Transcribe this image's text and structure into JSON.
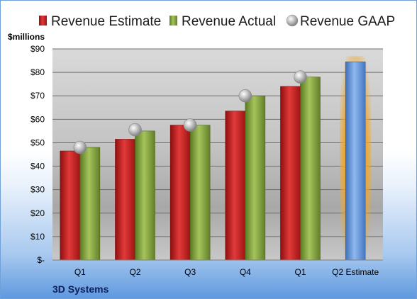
{
  "chart_data": {
    "type": "bar",
    "categories": [
      "Q1",
      "Q2",
      "Q3",
      "Q4",
      "Q1",
      "Q2 Estimate"
    ],
    "series": [
      {
        "name": "Revenue Estimate",
        "values": [
          46.5,
          51.5,
          57.5,
          63.5,
          74.0,
          null
        ],
        "color": "#d22626"
      },
      {
        "name": "Revenue Actual",
        "values": [
          48.0,
          55.0,
          57.5,
          70.0,
          78.0,
          null
        ],
        "color": "#88a844"
      },
      {
        "name": "Revenue GAAP",
        "values": [
          48.0,
          55.5,
          57.5,
          70.0,
          78.0,
          null
        ],
        "color": "#b8b8b8",
        "marker": "sphere"
      },
      {
        "name": "",
        "values": [
          null,
          null,
          null,
          null,
          null,
          84.5
        ],
        "color": "#5d95dc",
        "highlight": "#f5a623"
      }
    ],
    "y_unit": "$millions",
    "y_ticks": [
      "$-",
      "$10",
      "$20",
      "$30",
      "$40",
      "$50",
      "$60",
      "$70",
      "$80",
      "$90"
    ],
    "ylim": [
      0,
      90
    ],
    "grid": true,
    "legend_position": "top",
    "company": "3D Systems"
  }
}
